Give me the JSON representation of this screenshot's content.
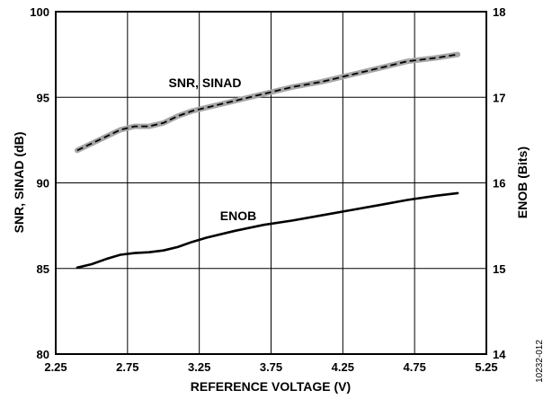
{
  "chart_data": {
    "type": "line",
    "xlabel": "REFERENCE VOLTAGE (V)",
    "ylabel": "SNR, SINAD (dB)",
    "y2label": "ENOB (Bits)",
    "xlim": [
      2.25,
      5.25
    ],
    "ylim": [
      80,
      100
    ],
    "y2lim": [
      14,
      18
    ],
    "xticks": [
      "2.25",
      "2.75",
      "3.25",
      "3.75",
      "4.25",
      "4.75",
      "5.25"
    ],
    "yticks": [
      "80",
      "85",
      "90",
      "95",
      "100"
    ],
    "y2ticks": [
      "14",
      "15",
      "16",
      "17",
      "18"
    ],
    "grid": true,
    "annotations": [
      "SNR, SINAD",
      "ENOB"
    ],
    "figure_id": "10232-012",
    "series": [
      {
        "axis": "left",
        "style": "grey line with black dashed overlay",
        "x": [
          2.4,
          2.5,
          2.6,
          2.7,
          2.8,
          2.9,
          3.0,
          3.1,
          3.2,
          3.3,
          3.5,
          3.7,
          3.9,
          4.1,
          4.3,
          4.5,
          4.7,
          4.9,
          5.05
        ],
        "values": [
          91.9,
          92.3,
          92.7,
          93.1,
          93.3,
          93.3,
          93.5,
          93.9,
          94.2,
          94.4,
          94.8,
          95.2,
          95.6,
          95.9,
          96.3,
          96.7,
          97.1,
          97.3,
          97.5
        ]
      },
      {
        "axis": "right",
        "style": "solid black",
        "x": [
          2.4,
          2.5,
          2.6,
          2.7,
          2.8,
          2.9,
          3.0,
          3.1,
          3.2,
          3.3,
          3.5,
          3.7,
          3.9,
          4.1,
          4.3,
          4.5,
          4.7,
          4.9,
          5.05
        ],
        "values": [
          15.01,
          15.05,
          15.11,
          15.16,
          15.18,
          15.19,
          15.21,
          15.25,
          15.31,
          15.36,
          15.44,
          15.51,
          15.56,
          15.62,
          15.68,
          15.74,
          15.8,
          15.85,
          15.88
        ]
      }
    ]
  }
}
